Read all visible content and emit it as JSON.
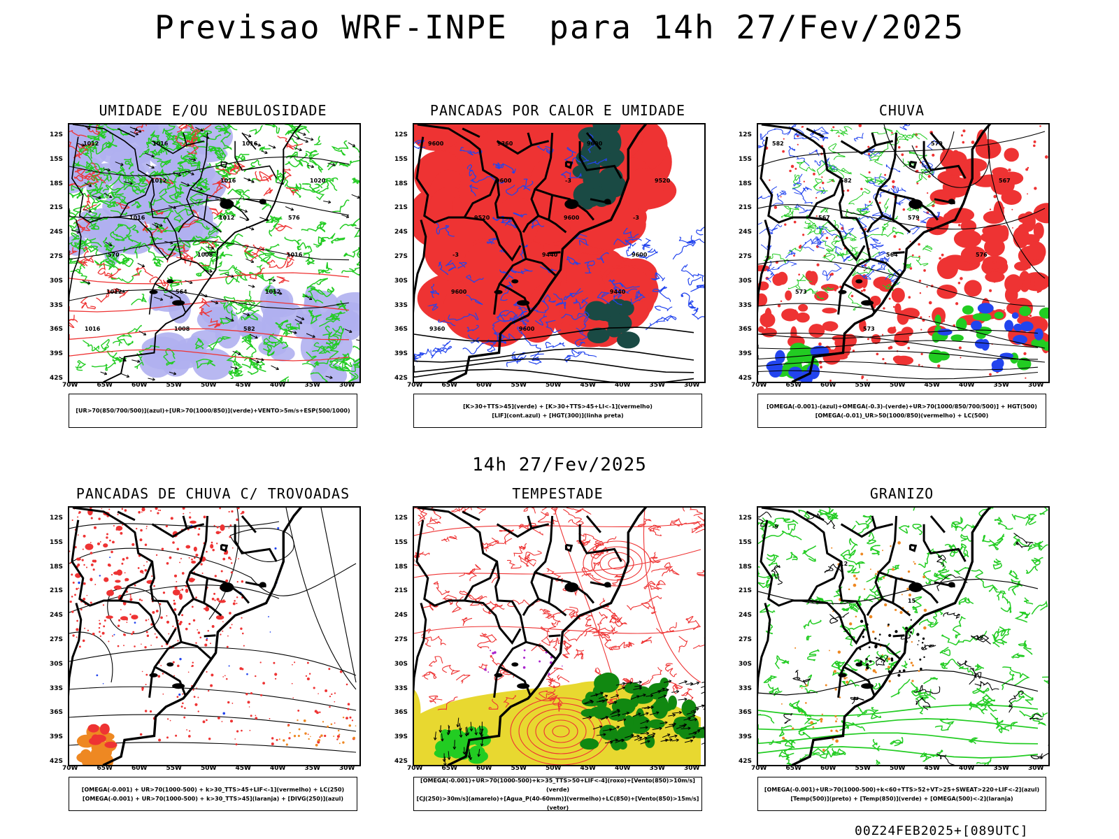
{
  "title": "Previsao WRF-INPE  para 14h 27/Fev/2025",
  "mid_label": "14h 27/Fev/2025",
  "run_label": "00Z24FEB2025+[089UTC]",
  "axes": {
    "lat_labels": [
      "12S",
      "15S",
      "18S",
      "21S",
      "24S",
      "27S",
      "30S",
      "33S",
      "36S",
      "39S",
      "42S"
    ],
    "lon_labels": [
      "70W",
      "65W",
      "60W",
      "55W",
      "50W",
      "45W",
      "40W",
      "35W",
      "30W"
    ]
  },
  "colors": {
    "green": "#22cc22",
    "red": "#ee3333",
    "blue": "#2244ee",
    "lavender": "#b0b0f0",
    "orange": "#ee8822",
    "yellow": "#e8d830",
    "darkteal": "#1a4a44",
    "purple": "#aa22cc"
  },
  "panels": [
    {
      "id": "umidade",
      "title": "UMIDADE E/OU NEBULOSIDADE",
      "legend": [
        "[UR>70(850/700/500)](azul)+[UR>70(1000/850)](verde)+VENTO>5m/s+ESP(500/1000)"
      ],
      "contour_labels": [
        "1012",
        "1012",
        "1012",
        "1016",
        "1012",
        "1008",
        "1016",
        "1020",
        "1016",
        "1008",
        "1012",
        "1016",
        "1016",
        "1016",
        "576",
        "570",
        "564",
        "582"
      ]
    },
    {
      "id": "pancadas_calor",
      "title": "PANCADAS POR CALOR E UMIDADE",
      "legend": [
        "[K>30+TTS>45](verde)  +  [K>30+TTS>45+LI<-1](vermelho)",
        "[LIF](cont.azul)  +  [HGT(300)](linha preta)"
      ],
      "contour_labels": [
        "9600",
        "9600",
        "9600",
        "9600",
        "9600",
        "9600",
        "9600",
        "9520",
        "9520",
        "9440",
        "9440",
        "9360",
        "9360",
        "-3",
        "-3",
        "-3"
      ]
    },
    {
      "id": "chuva",
      "title": "CHUVA",
      "legend": [
        "[OMEGA(-0.001)-(azul)+OMEGA(-0.3)-(verde)+UR>70(1000/850/700/500)]  +  HGT(500)",
        "[OMEGA(-0.01)_UR>50(1000/850)(vermelho)  +  LC(500)"
      ],
      "contour_labels": [
        "582",
        "582",
        "579",
        "576",
        "573",
        "573",
        "570",
        "567",
        "567",
        "564"
      ]
    },
    {
      "id": "trovoadas",
      "title": "PANCADAS DE CHUVA C/ TROVOADAS",
      "legend": [
        "[OMEGA(-0.001)  +  UR>70(1000-500)  +  k>30_TTS>45+LIF<-1](vermelho)  +  LC(250)",
        "[OMEGA(-0.001)  +  UR>70(1000-500)  +  k>30_TTS>45](laranja)  +  [DIVG(250)](azul)"
      ],
      "contour_labels": []
    },
    {
      "id": "tempestade",
      "title": "TEMPESTADE",
      "legend": [
        "[OMEGA(-0.001)+UR>70(1000-500)+k>35_TTS>50+LIF<-4](roxo)+[Vento(850)>10m/s](verde)",
        "[CJ(250)>30m/s](amarelo)+[Agua_P(40-60mm)](vermelho)+LC(850)+[Vento(850)>15m/s](vetor)"
      ],
      "contour_labels": []
    },
    {
      "id": "granizo",
      "title": "GRANIZO",
      "legend": [
        "[OMEGA(-0.001)+UR>70(1000-500)+k<60+TTS>52+VT>25+SWEAT>220+LIF<-2](azul)",
        "[Temp(500)](preto)  +  [Temp(850)](verde)  +  [OMEGA(500)<-2](laranja)"
      ],
      "contour_labels": [
        "-9",
        "12",
        "15",
        "12"
      ]
    }
  ]
}
